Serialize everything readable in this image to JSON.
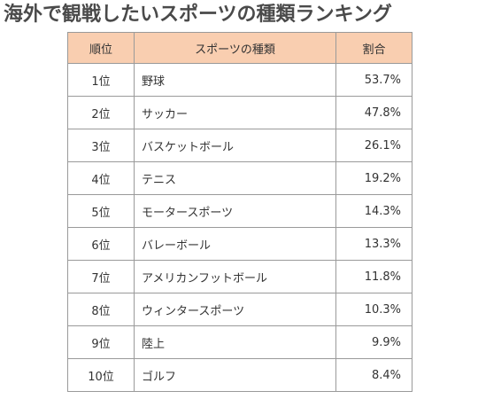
{
  "title": "海外で観戦したいスポーツの種類ランキング",
  "colors": {
    "header_bg": "#f9ceb0",
    "border": "#9a9a9a",
    "text": "#333333",
    "title_text": "#4a4a4a"
  },
  "table": {
    "headers": [
      "順位",
      "スポーツの種類",
      "割合"
    ],
    "rows": [
      {
        "rank": "1位",
        "sport": "野球",
        "pct": "53.7%"
      },
      {
        "rank": "2位",
        "sport": "サッカー",
        "pct": "47.8%"
      },
      {
        "rank": "3位",
        "sport": "バスケットボール",
        "pct": "26.1%"
      },
      {
        "rank": "4位",
        "sport": "テニス",
        "pct": "19.2%"
      },
      {
        "rank": "5位",
        "sport": "モータースポーツ",
        "pct": "14.3%"
      },
      {
        "rank": "6位",
        "sport": "バレーボール",
        "pct": "13.3%"
      },
      {
        "rank": "7位",
        "sport": "アメリカンフットボール",
        "pct": "11.8%"
      },
      {
        "rank": "8位",
        "sport": "ウィンタースポーツ",
        "pct": "10.3%"
      },
      {
        "rank": "9位",
        "sport": "陸上",
        "pct": "9.9%"
      },
      {
        "rank": "10位",
        "sport": "ゴルフ",
        "pct": "8.4%"
      }
    ]
  },
  "chart_data": {
    "type": "table",
    "title": "海外で観戦したいスポーツの種類ランキング",
    "columns": [
      "順位",
      "スポーツの種類",
      "割合"
    ],
    "categories": [
      "野球",
      "サッカー",
      "バスケットボール",
      "テニス",
      "モータースポーツ",
      "バレーボール",
      "アメリカンフットボール",
      "ウィンタースポーツ",
      "陸上",
      "ゴルフ"
    ],
    "values": [
      53.7,
      47.8,
      26.1,
      19.2,
      14.3,
      13.3,
      11.8,
      10.3,
      9.9,
      8.4
    ],
    "unit": "%"
  }
}
